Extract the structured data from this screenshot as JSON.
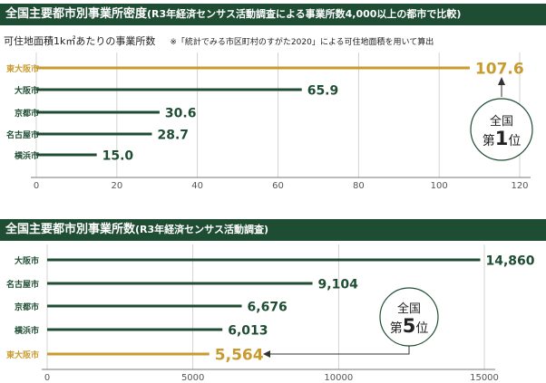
{
  "colors": {
    "accent": "#1f4d33",
    "highlight": "#c99a2e",
    "axis_text": "#555555"
  },
  "chart_data": [
    {
      "type": "bar",
      "title": "全国主要都市別事業所密度",
      "subtitle": "(R3年経済センサス活動調査による事業所数4,000以上の都市で比較)",
      "ylabel": "可住地面積1k㎡あたりの事業所数",
      "note": "※「統計でみる市区町村のすがた2020」による可住地面積を用いて算出",
      "categories": [
        "東大阪市",
        "大阪市",
        "京都市",
        "名古屋市",
        "横浜市"
      ],
      "values": [
        107.6,
        65.9,
        30.6,
        28.7,
        15.0
      ],
      "value_labels": [
        "107.6",
        "65.9",
        "30.6",
        "28.7",
        "15.0"
      ],
      "highlight": "東大阪市",
      "xlim": [
        0,
        120
      ],
      "ticks": [
        "0",
        "20",
        "40",
        "60",
        "80",
        "100",
        "120"
      ],
      "grid": true,
      "badge": {
        "line1": "全国",
        "line2_prefix": "第",
        "rank": "1",
        "line2_suffix": "位"
      }
    },
    {
      "type": "bar",
      "title": "全国主要都市別事業所数",
      "subtitle": "(R3年経済センサス活動調査)",
      "categories": [
        "大阪市",
        "名古屋市",
        "京都市",
        "横浜市",
        "東大阪市"
      ],
      "values": [
        14860,
        9104,
        6676,
        6013,
        5564
      ],
      "value_labels": [
        "14,860",
        "9,104",
        "6,676",
        "6,013",
        "5,564"
      ],
      "highlight": "東大阪市",
      "xlim": [
        0,
        15000
      ],
      "ticks": [
        "0",
        "5000",
        "10000",
        "15000"
      ],
      "grid": true,
      "badge": {
        "line1": "全国",
        "line2_prefix": "第",
        "rank": "5",
        "line2_suffix": "位"
      }
    }
  ]
}
